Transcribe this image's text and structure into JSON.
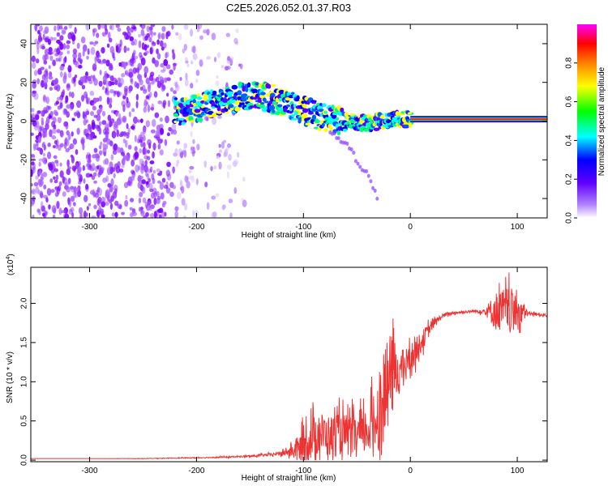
{
  "chart_data": [
    {
      "type": "heatmap",
      "title": "C2E5.2026.052.01.37.R03",
      "xlabel": "Height of straight line (km)",
      "ylabel": "Frequency (Hz)",
      "xlim": [
        -355,
        128
      ],
      "ylim": [
        -50,
        50
      ],
      "x_ticks": [
        -300,
        -200,
        -100,
        0,
        100
      ],
      "y_ticks": [
        40,
        20,
        0,
        -20,
        -40
      ],
      "x_tick_labels": [
        "-300",
        "-200",
        "-100",
        "0",
        "100"
      ],
      "y_tick_labels": [
        "40",
        "20",
        "0",
        "-20",
        "-40"
      ],
      "colorbar": {
        "label": "Normalized spectral amplitude",
        "range": [
          0,
          1
        ],
        "ticks": [
          0.0,
          0.2,
          0.4,
          0.6,
          0.8
        ],
        "tick_labels": [
          "0.0",
          "0.2",
          "0.4",
          "0.6",
          "0.8"
        ],
        "colors": [
          "#ffffff",
          "#8a00ff",
          "#0000ff",
          "#00ffff",
          "#00ff00",
          "#ffff00",
          "#ff8000",
          "#ff0000",
          "#ff00ff"
        ]
      },
      "signal_track": [
        {
          "x": -220,
          "y": 5
        },
        {
          "x": -200,
          "y": 7
        },
        {
          "x": -180,
          "y": 9
        },
        {
          "x": -160,
          "y": 12
        },
        {
          "x": -145,
          "y": 14
        },
        {
          "x": -130,
          "y": 12
        },
        {
          "x": -115,
          "y": 9
        },
        {
          "x": -100,
          "y": 6
        },
        {
          "x": -85,
          "y": 2
        },
        {
          "x": -70,
          "y": 1
        },
        {
          "x": -55,
          "y": 0
        },
        {
          "x": -40,
          "y": -1
        },
        {
          "x": -25,
          "y": 0
        },
        {
          "x": -10,
          "y": 1
        },
        {
          "x": 0,
          "y": 1
        },
        {
          "x": 128,
          "y": 0
        }
      ],
      "secondary_track": [
        {
          "x": -75,
          "y": -6
        },
        {
          "x": -60,
          "y": -12
        },
        {
          "x": -50,
          "y": -20
        },
        {
          "x": -40,
          "y": -28
        },
        {
          "x": -30,
          "y": -40
        }
      ]
    },
    {
      "type": "line",
      "xlabel": "Height of straight line (km)",
      "ylabel": "SNR (10 * v/v)",
      "y_multiplier": "(x10",
      "y_multiplier_exp": "4",
      "y_multiplier_close": ")",
      "xlim": [
        -355,
        128
      ],
      "ylim": [
        -0.02,
        2.46
      ],
      "x_ticks": [
        -300,
        -200,
        -100,
        0,
        100
      ],
      "y_ticks": [
        0.0,
        0.5,
        1.0,
        1.5,
        2.0
      ],
      "x_tick_labels": [
        "-300",
        "-200",
        "-100",
        "0",
        "100"
      ],
      "y_tick_labels": [
        "0.0",
        "0.5",
        "1.0",
        "1.5",
        "2.0"
      ],
      "color": "#ee3333",
      "series": [
        {
          "name": "SNR",
          "x": [
            -355,
            -300,
            -250,
            -200,
            -170,
            -150,
            -130,
            -115,
            -105,
            -95,
            -85,
            -75,
            -65,
            -55,
            -45,
            -35,
            -25,
            -20,
            -15,
            -10,
            -5,
            0,
            10,
            20,
            30,
            40,
            50,
            60,
            70,
            80,
            90,
            100,
            110,
            128
          ],
          "y": [
            0.02,
            0.02,
            0.02,
            0.03,
            0.04,
            0.05,
            0.07,
            0.1,
            0.14,
            0.25,
            0.35,
            0.3,
            0.33,
            0.3,
            0.33,
            0.45,
            0.75,
            1.05,
            1.1,
            1.15,
            1.22,
            1.3,
            1.5,
            1.72,
            1.84,
            1.88,
            1.89,
            1.9,
            1.9,
            1.9,
            1.92,
            1.9,
            1.87,
            1.85
          ],
          "noise": [
            0,
            0,
            0.003,
            0.006,
            0.01,
            0.015,
            0.02,
            0.05,
            0.18,
            0.3,
            0.3,
            0.3,
            0.3,
            0.3,
            0.3,
            0.42,
            0.6,
            0.65,
            0.5,
            0.3,
            0.22,
            0.2,
            0.15,
            0.08,
            0.03,
            0.02,
            0.02,
            0.02,
            0.05,
            0.28,
            0.32,
            0.3,
            0.03,
            0.02
          ]
        }
      ]
    }
  ]
}
